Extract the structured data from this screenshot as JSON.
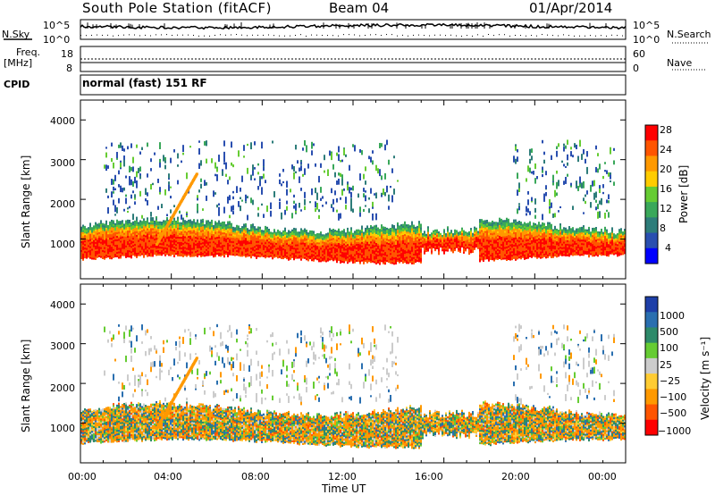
{
  "header": {
    "title": "South Pole Station (fitACF)",
    "beam": "Beam 04",
    "date": "01/Apr/2014"
  },
  "noise_panel": {
    "left_label": "N.Sky",
    "right_label": "N.Search",
    "left_ticks": [
      "10^5",
      "10^0"
    ],
    "right_ticks": [
      "10^5",
      "10^0"
    ]
  },
  "freq_panel": {
    "left_label_1": "Freq.",
    "left_label_2": "[MHz]",
    "left_ticks": [
      "18",
      "8"
    ],
    "right_label": "Nave",
    "right_ticks": [
      "60",
      "0"
    ],
    "cpid_label": "CPID",
    "cpid_value": "normal (fast) 151 RF"
  },
  "colors": {
    "power_scale": [
      "#0000ff",
      "#2a4fb0",
      "#2e7d7a",
      "#3aa85a",
      "#66cc33",
      "#ffcc00",
      "#ff9900",
      "#ff5500",
      "#ff0000"
    ],
    "velocity_scale": [
      "#1e3fa8",
      "#2a6fb0",
      "#2e8a6a",
      "#66cc33",
      "#cccccc",
      "#ffcc33",
      "#ff9900",
      "#ff5500",
      "#ff0000"
    ]
  },
  "chart_data": [
    {
      "type": "heatmap",
      "title": "",
      "xlabel": "",
      "ylabel": "Slant Range [km]",
      "xlim": [
        "00:00",
        "00:00"
      ],
      "ylim": [
        0,
        4500
      ],
      "yticks": [
        "1000",
        "2000",
        "3000",
        "4000"
      ],
      "colorbar": {
        "label": "Power [dB]",
        "ticks": [
          "28",
          "24",
          "20",
          "16",
          "12",
          "8",
          "4"
        ],
        "range": [
          0,
          30
        ]
      },
      "description_bands": [
        {
          "x_start_hour": 0,
          "x_end_hour": 24,
          "range_km": [
            500,
            1300
          ],
          "value_db": 28
        },
        {
          "x_start_hour": 0,
          "x_end_hour": 24,
          "range_km": [
            1300,
            1600
          ],
          "value_db": 16
        },
        {
          "x_start_hour": 1,
          "x_end_hour": 14,
          "range_km": [
            2000,
            3500
          ],
          "value_db": 10
        }
      ]
    },
    {
      "type": "heatmap",
      "title": "",
      "xlabel": "Time UT",
      "ylabel": "Slant Range [km]",
      "xticks": [
        "00:00",
        "04:00",
        "08:00",
        "12:00",
        "16:00",
        "20:00",
        "00:00"
      ],
      "ylim": [
        0,
        4500
      ],
      "yticks": [
        "1000",
        "2000",
        "3000",
        "4000"
      ],
      "colorbar": {
        "label": "Velocity [m s⁻¹]",
        "ticks": [
          "1000",
          "500",
          "100",
          "25",
          "−25",
          "−100",
          "−500",
          "−1000"
        ],
        "range": [
          -1000,
          1000
        ]
      }
    }
  ]
}
